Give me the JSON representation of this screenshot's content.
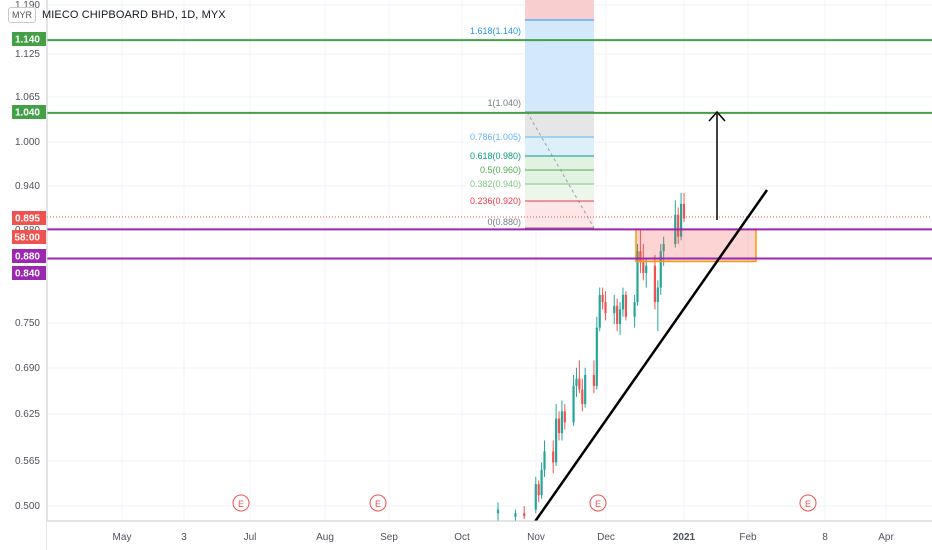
{
  "header": {
    "currency_badge": "MYR",
    "symbol_title": "MIECO CHIPBOARD BHD, 1D, MYX"
  },
  "price_axis": {
    "ticks": [
      "1.190",
      "1.125",
      "1.065",
      "1.000",
      "0.940",
      "0.880",
      "0.750",
      "0.690",
      "0.625",
      "0.565",
      "0.500"
    ],
    "badges": [
      {
        "label": "1.140",
        "color": "#43a047"
      },
      {
        "label": "1.040",
        "color": "#43a047"
      },
      {
        "label": "0.895",
        "color": "#ef5350"
      },
      {
        "label": "58:00",
        "color": "#ef5350"
      },
      {
        "label": "0.880",
        "color": "#9c27b0"
      },
      {
        "label": "0.840",
        "color": "#9c27b0"
      }
    ]
  },
  "time_axis": {
    "ticks": [
      "May",
      "3",
      "Jul",
      "Aug",
      "Sep",
      "Oct",
      "Nov",
      "Dec",
      "2021",
      "Feb",
      "8",
      "Apr"
    ],
    "bold_ticks": [
      "2021"
    ]
  },
  "earnings_markers": [
    "E",
    "E",
    "E",
    "E"
  ],
  "fib_levels": [
    {
      "label": "1.618(1.140)",
      "color": "#2196f3"
    },
    {
      "label": "1(1.040)",
      "color": "#787b86"
    },
    {
      "label": "0.786(1.005)",
      "color": "#64b5f6"
    },
    {
      "label": "0.618(0.980)",
      "color": "#089981"
    },
    {
      "label": "0.5(0.960)",
      "color": "#4caf50"
    },
    {
      "label": "0.382(0.940)",
      "color": "#81c784"
    },
    {
      "label": "0.236(0.920)",
      "color": "#f23645"
    },
    {
      "label": "0(0.880)",
      "color": "#787b86"
    }
  ],
  "colors": {
    "up": "#26a69a",
    "down": "#ef5350",
    "green_line": "#43a047",
    "purple_line": "#9c27b0",
    "box_border": "#ff9800",
    "grid": "#f0f3fa"
  },
  "chart_data": {
    "type": "candlestick",
    "title": "MIECO CHIPBOARD BHD, 1D, MYX",
    "ylim": [
      0.48,
      1.19
    ],
    "grid": true,
    "horizontal_levels": [
      {
        "value": 1.14,
        "color": "#43a047"
      },
      {
        "value": 1.04,
        "color": "#43a047"
      },
      {
        "value": 0.88,
        "color": "#9c27b0"
      },
      {
        "value": 0.84,
        "color": "#9c27b0"
      }
    ],
    "last_price": 0.895,
    "candles": [
      {
        "x": "2020-10-28",
        "o": 0.49,
        "h": 0.505,
        "l": 0.48,
        "c": 0.495
      },
      {
        "x": "2020-11-03",
        "o": 0.485,
        "h": 0.495,
        "l": 0.478,
        "c": 0.49
      },
      {
        "x": "2020-11-06",
        "o": 0.49,
        "h": 0.5,
        "l": 0.482,
        "c": 0.486
      },
      {
        "x": "2020-11-10",
        "o": 0.495,
        "h": 0.54,
        "l": 0.49,
        "c": 0.53
      },
      {
        "x": "2020-11-11",
        "o": 0.53,
        "h": 0.535,
        "l": 0.505,
        "c": 0.515
      },
      {
        "x": "2020-11-12",
        "o": 0.515,
        "h": 0.56,
        "l": 0.51,
        "c": 0.55
      },
      {
        "x": "2020-11-13",
        "o": 0.55,
        "h": 0.59,
        "l": 0.54,
        "c": 0.575
      },
      {
        "x": "2020-11-16",
        "o": 0.575,
        "h": 0.59,
        "l": 0.545,
        "c": 0.56
      },
      {
        "x": "2020-11-17",
        "o": 0.56,
        "h": 0.64,
        "l": 0.555,
        "c": 0.62
      },
      {
        "x": "2020-11-18",
        "o": 0.62,
        "h": 0.63,
        "l": 0.59,
        "c": 0.6
      },
      {
        "x": "2020-11-19",
        "o": 0.6,
        "h": 0.645,
        "l": 0.59,
        "c": 0.63
      },
      {
        "x": "2020-11-20",
        "o": 0.63,
        "h": 0.64,
        "l": 0.605,
        "c": 0.615
      },
      {
        "x": "2020-11-23",
        "o": 0.615,
        "h": 0.68,
        "l": 0.61,
        "c": 0.665
      },
      {
        "x": "2020-11-24",
        "o": 0.665,
        "h": 0.69,
        "l": 0.65,
        "c": 0.675
      },
      {
        "x": "2020-11-25",
        "o": 0.675,
        "h": 0.7,
        "l": 0.655,
        "c": 0.66
      },
      {
        "x": "2020-11-26",
        "o": 0.66,
        "h": 0.675,
        "l": 0.63,
        "c": 0.64
      },
      {
        "x": "2020-11-27",
        "o": 0.64,
        "h": 0.69,
        "l": 0.635,
        "c": 0.68
      },
      {
        "x": "2020-11-30",
        "o": 0.68,
        "h": 0.7,
        "l": 0.655,
        "c": 0.665
      },
      {
        "x": "2020-12-01",
        "o": 0.665,
        "h": 0.76,
        "l": 0.66,
        "c": 0.745
      },
      {
        "x": "2020-12-02",
        "o": 0.745,
        "h": 0.8,
        "l": 0.74,
        "c": 0.79
      },
      {
        "x": "2020-12-03",
        "o": 0.79,
        "h": 0.8,
        "l": 0.77,
        "c": 0.78
      },
      {
        "x": "2020-12-04",
        "o": 0.78,
        "h": 0.795,
        "l": 0.755,
        "c": 0.765
      },
      {
        "x": "2020-12-07",
        "o": 0.765,
        "h": 0.79,
        "l": 0.75,
        "c": 0.775
      },
      {
        "x": "2020-12-08",
        "o": 0.775,
        "h": 0.785,
        "l": 0.74,
        "c": 0.75
      },
      {
        "x": "2020-12-09",
        "o": 0.75,
        "h": 0.78,
        "l": 0.735,
        "c": 0.77
      },
      {
        "x": "2020-12-10",
        "o": 0.77,
        "h": 0.8,
        "l": 0.76,
        "c": 0.79
      },
      {
        "x": "2020-12-11",
        "o": 0.79,
        "h": 0.795,
        "l": 0.755,
        "c": 0.76
      },
      {
        "x": "2020-12-14",
        "o": 0.76,
        "h": 0.79,
        "l": 0.745,
        "c": 0.78
      },
      {
        "x": "2020-12-15",
        "o": 0.78,
        "h": 0.86,
        "l": 0.775,
        "c": 0.85
      },
      {
        "x": "2020-12-16",
        "o": 0.85,
        "h": 0.88,
        "l": 0.82,
        "c": 0.835
      },
      {
        "x": "2020-12-17",
        "o": 0.835,
        "h": 0.86,
        "l": 0.81,
        "c": 0.82
      },
      {
        "x": "2020-12-18",
        "o": 0.82,
        "h": 0.84,
        "l": 0.8,
        "c": 0.83
      },
      {
        "x": "2020-12-21",
        "o": 0.83,
        "h": 0.845,
        "l": 0.77,
        "c": 0.78
      },
      {
        "x": "2020-12-22",
        "o": 0.78,
        "h": 0.81,
        "l": 0.74,
        "c": 0.8
      },
      {
        "x": "2020-12-23",
        "o": 0.8,
        "h": 0.86,
        "l": 0.79,
        "c": 0.85
      },
      {
        "x": "2020-12-24",
        "o": 0.85,
        "h": 0.87,
        "l": 0.83,
        "c": 0.86
      },
      {
        "x": "2020-12-28",
        "o": 0.86,
        "h": 0.92,
        "l": 0.855,
        "c": 0.9
      },
      {
        "x": "2020-12-29",
        "o": 0.9,
        "h": 0.91,
        "l": 0.86,
        "c": 0.87
      },
      {
        "x": "2020-12-30",
        "o": 0.87,
        "h": 0.93,
        "l": 0.865,
        "c": 0.915
      },
      {
        "x": "2020-12-31",
        "o": 0.915,
        "h": 0.93,
        "l": 0.89,
        "c": 0.895
      }
    ]
  }
}
